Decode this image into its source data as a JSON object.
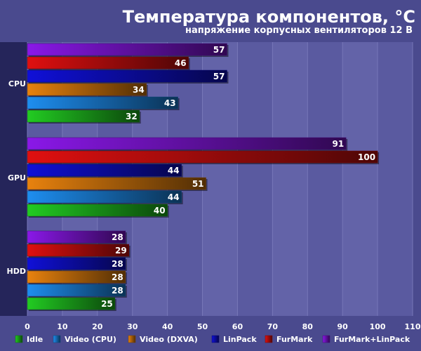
{
  "chart_data": {
    "type": "bar",
    "orientation": "horizontal",
    "title": "Температура компонентов, °C",
    "subtitle": "напряжение корпусных вентиляторов 12 В",
    "categories": [
      "CPU",
      "GPU",
      "HDD"
    ],
    "series": [
      {
        "name": "Idle",
        "values": [
          32,
          40,
          25
        ],
        "color": "#22cc22"
      },
      {
        "name": "Video (CPU)",
        "values": [
          43,
          44,
          28
        ],
        "color": "#1e8ef0"
      },
      {
        "name": "Video (DXVA)",
        "values": [
          34,
          51,
          28
        ],
        "color": "#e8820e"
      },
      {
        "name": "LinPack",
        "values": [
          57,
          44,
          28
        ],
        "color": "#1010d8"
      },
      {
        "name": "FurMark",
        "values": [
          46,
          100,
          29
        ],
        "color": "#e01010"
      },
      {
        "name": "FurMark+LinPack",
        "values": [
          57,
          91,
          28
        ],
        "color": "#8a18e8"
      }
    ],
    "xlim": [
      0,
      110
    ],
    "xticks": [
      0,
      10,
      20,
      30,
      40,
      50,
      60,
      70,
      80,
      90,
      100,
      110
    ],
    "grid": true,
    "legend_position": "bottom"
  },
  "colors": {
    "background": "#4a4a8e",
    "plot_background": "#5a5aa0",
    "band_light": "#6363a8",
    "axis_panel": "#25255a",
    "text": "#ffffff"
  }
}
